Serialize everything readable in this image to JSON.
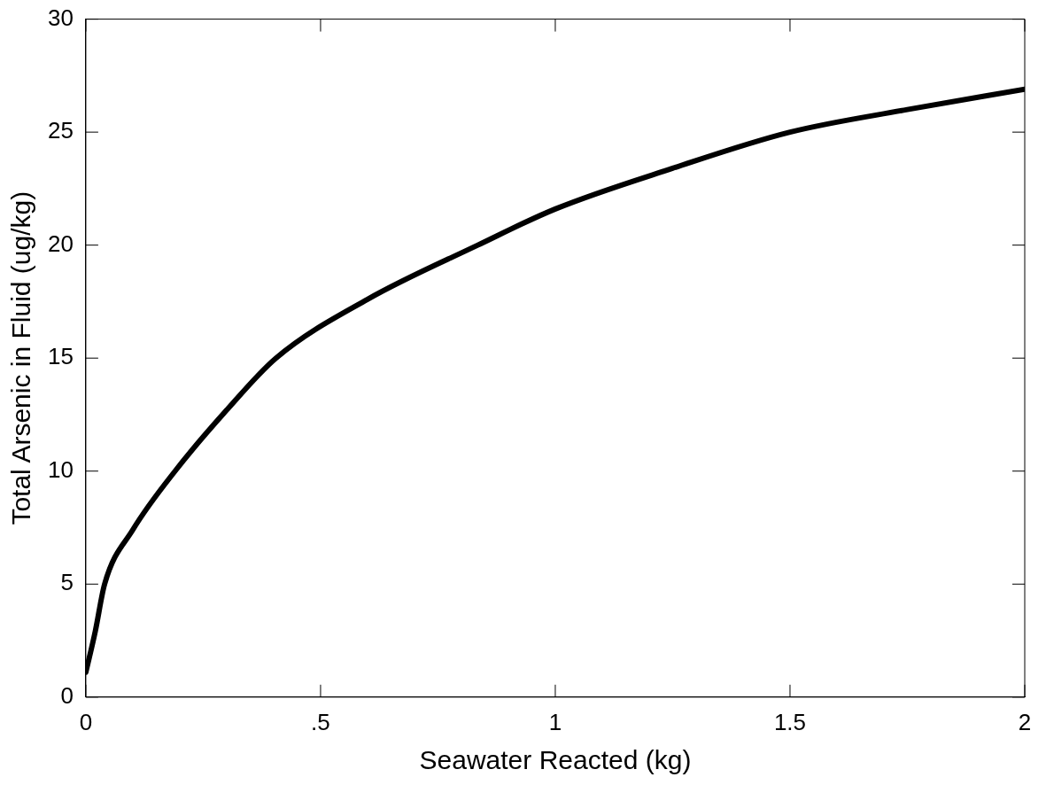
{
  "chart_data": {
    "type": "line",
    "xlabel": "Seawater Reacted (kg)",
    "ylabel": "Total Arsenic in Fluid (ug/kg)",
    "x": [
      0,
      0.02,
      0.04,
      0.1,
      0.19,
      0.3,
      0.405,
      0.6,
      0.835,
      1,
      1.25,
      1.5,
      1.75,
      2
    ],
    "series": [
      {
        "color": "#000000",
        "values": [
          1.1,
          2.9,
          5,
          7.4,
          10,
          12.7,
          15,
          17.6,
          20,
          21.6,
          23.4,
          25,
          26,
          26.9
        ]
      }
    ],
    "xlim": [
      0,
      2
    ],
    "xticks": [
      0,
      {
        "value": 0.5,
        "label": ".5"
      },
      1,
      1.5,
      2
    ],
    "ylim": [
      0,
      30
    ],
    "yticks": [
      0,
      5,
      10,
      15,
      20,
      25,
      30
    ],
    "legend": false,
    "marker": "none",
    "line_style": "solid"
  }
}
